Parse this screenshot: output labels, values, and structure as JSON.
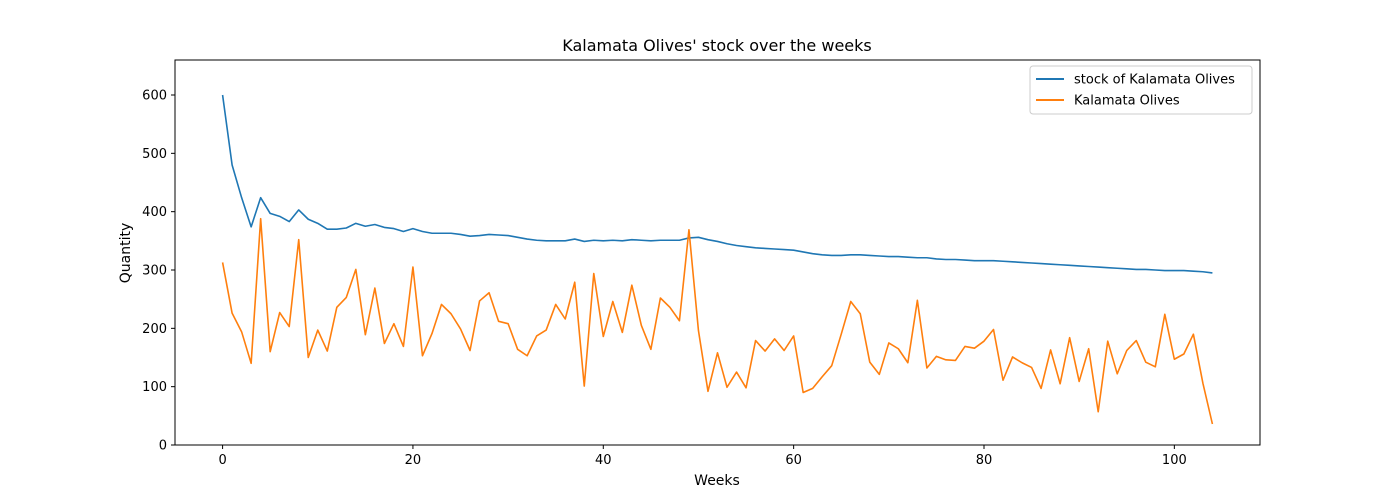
{
  "chart_data": {
    "type": "line",
    "title": "Kalamata Olives' stock over the weeks",
    "xlabel": "Weeks",
    "ylabel": "Quantity",
    "xlim": [
      -5,
      109
    ],
    "ylim": [
      0,
      660
    ],
    "xticks": [
      0,
      20,
      40,
      60,
      80,
      100
    ],
    "yticks": [
      0,
      100,
      200,
      300,
      400,
      500,
      600
    ],
    "grid": false,
    "legend_position": "top-right",
    "series": [
      {
        "name": "stock of Kalamata Olives",
        "color": "#1f77b4",
        "values": [
          600,
          480,
          424,
          374,
          424,
          397,
          392,
          383,
          403,
          387,
          380,
          370,
          370,
          372,
          380,
          375,
          378,
          373,
          371,
          366,
          371,
          366,
          363,
          363,
          363,
          361,
          358,
          359,
          361,
          360,
          359,
          356,
          353,
          351,
          350,
          350,
          350,
          353,
          349,
          351,
          350,
          351,
          350,
          352,
          351,
          350,
          351,
          351,
          351,
          355,
          356,
          352,
          349,
          345,
          342,
          340,
          338,
          337,
          336,
          335,
          334,
          331,
          328,
          326,
          325,
          325,
          326,
          326,
          325,
          324,
          323,
          323,
          322,
          321,
          321,
          319,
          318,
          318,
          317,
          316,
          316,
          316,
          315,
          314,
          313,
          312,
          311,
          310,
          309,
          308,
          307,
          306,
          305,
          304,
          303,
          302,
          301,
          301,
          300,
          299,
          299,
          299,
          298,
          297,
          295
        ]
      },
      {
        "name": "Kalamata Olives",
        "color": "#ff7f0e",
        "values": [
          313,
          226,
          194,
          140,
          388,
          160,
          227,
          203,
          352,
          150,
          197,
          161,
          236,
          253,
          301,
          189,
          269,
          174,
          208,
          169,
          305,
          153,
          191,
          241,
          225,
          199,
          162,
          247,
          261,
          212,
          208,
          164,
          153,
          187,
          197,
          241,
          216,
          279,
          101,
          294,
          186,
          246,
          193,
          274,
          205,
          164,
          252,
          236,
          213,
          369,
          196,
          92,
          158,
          99,
          125,
          98,
          179,
          161,
          182,
          162,
          187,
          90,
          97,
          117,
          136,
          190,
          246,
          225,
          142,
          121,
          175,
          165,
          141,
          248,
          132,
          152,
          146,
          145,
          169,
          166,
          178,
          198,
          111,
          151,
          141,
          133,
          97,
          163,
          105,
          184,
          109,
          165,
          57,
          178,
          122,
          162,
          179,
          142,
          134,
          224,
          147,
          156,
          190,
          106,
          36
        ]
      }
    ]
  }
}
